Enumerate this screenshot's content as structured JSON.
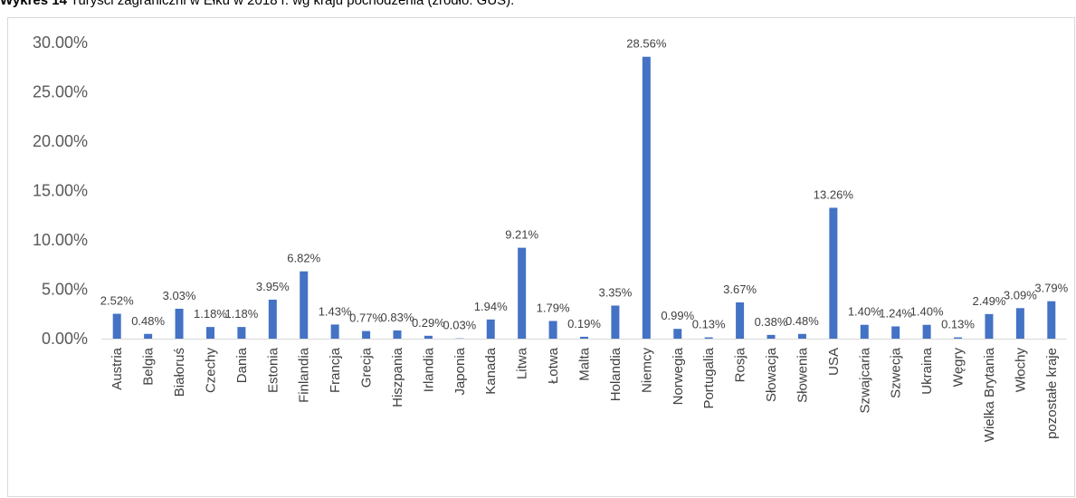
{
  "caption": {
    "bold": "Wykres 14",
    "text": " Turyści zagraniczni w Ełku w 2018 r. wg kraju pochodzenia (źródło: GUS)."
  },
  "chart_data": {
    "type": "bar",
    "categories": [
      "Austria",
      "Belgia",
      "Białoruś",
      "Czechy",
      "Dania",
      "Estonia",
      "Finlandia",
      "Francja",
      "Grecja",
      "Hiszpania",
      "Irlandia",
      "Japonia",
      "Kanada",
      "Litwa",
      "Łotwa",
      "Malta",
      "Holandia",
      "Niemcy",
      "Norwegia",
      "Portugalia",
      "Rosja",
      "Słowacja",
      "Słowenia",
      "USA",
      "Szwajcaria",
      "Szwecja",
      "Ukraina",
      "Węgry",
      "Wielka Brytania",
      "Włochy",
      "pozostałe kraje"
    ],
    "values": [
      2.52,
      0.48,
      3.03,
      1.18,
      1.18,
      3.95,
      6.82,
      1.43,
      0.77,
      0.83,
      0.29,
      0.03,
      1.94,
      9.21,
      1.79,
      0.19,
      3.35,
      28.56,
      0.99,
      0.13,
      3.67,
      0.38,
      0.48,
      13.26,
      1.4,
      1.24,
      1.4,
      0.13,
      2.49,
      3.09,
      3.79
    ],
    "data_labels": [
      "2.52%",
      "0.48%",
      "3.03%",
      "1.18%",
      "1.18%",
      "3.95%",
      "6.82%",
      "1.43%",
      "0.77%",
      "0.83%",
      "0.29%",
      "0.03%",
      "1.94%",
      "9.21%",
      "1.79%",
      "0.19%",
      "3.35%",
      "28.56%",
      "0.99%",
      "0.13%",
      "3.67%",
      "0.38%",
      "0.48%",
      "13.26%",
      "1.40%",
      "1.24%",
      "1.40%",
      "0.13%",
      "2.49%",
      "3.09%",
      "3.79%"
    ],
    "ylim": [
      0,
      30
    ],
    "yticks": [
      0,
      5,
      10,
      15,
      20,
      25,
      30
    ],
    "ytick_labels": [
      "0.00%",
      "5.00%",
      "10.00%",
      "15.00%",
      "20.00%",
      "25.00%",
      "30.00%"
    ],
    "grid": false,
    "legend": "none",
    "bar_color": "#4472c4"
  }
}
